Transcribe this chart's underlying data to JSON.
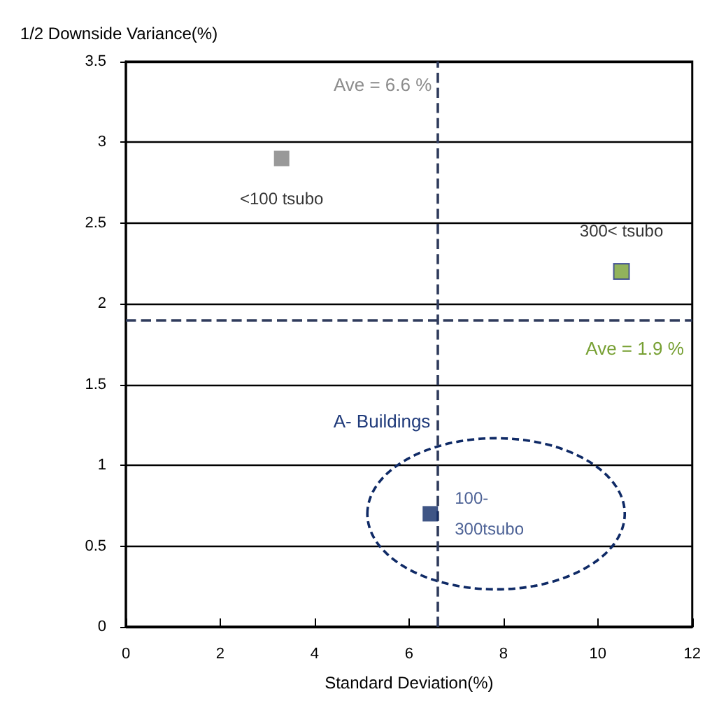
{
  "chart_data": {
    "type": "scatter",
    "xlabel": "Standard Deviation(%)",
    "ylabel": "1/2 Downside Variance(%)",
    "xlim": [
      0,
      12
    ],
    "xticks": [
      0,
      2,
      4,
      6,
      8,
      10,
      12
    ],
    "ylim": [
      0,
      3.5
    ],
    "yticks": [
      0,
      0.5,
      1,
      1.5,
      2,
      2.5,
      3,
      3.5
    ],
    "grid": "y",
    "marker": "square",
    "legend": false,
    "series": [
      {
        "name": "<100 tsubo",
        "color": "#7f7f7f",
        "x": [
          3.3
        ],
        "values": [
          2.9
        ]
      },
      {
        "name": "300< tsubo",
        "color": "#77a033",
        "x": [
          10.5
        ],
        "values": [
          2.2
        ]
      },
      {
        "name": "100-\n300tsubo",
        "color": "#0f2a66",
        "x": [
          6.45
        ],
        "values": [
          0.7
        ]
      }
    ],
    "ref_lines": [
      {
        "axis": "x",
        "value": 6.6,
        "label": "Ave = 6.6 %",
        "color": "#2f3b5c",
        "line_style": "dashed"
      },
      {
        "axis": "y",
        "value": 1.9,
        "label": "Ave = 1.9 %",
        "color": "#2f3b5c",
        "line_style": "dashed"
      }
    ],
    "annotations": [
      "A- Buildings"
    ]
  }
}
